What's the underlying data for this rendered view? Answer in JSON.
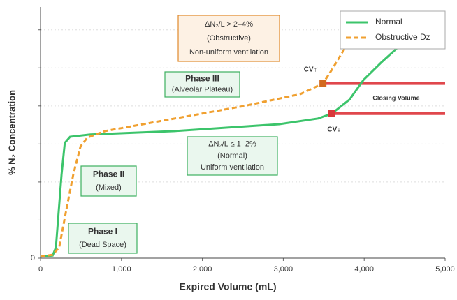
{
  "chart_data": {
    "type": "line",
    "x_label": "Expired Volume (mL)",
    "y_label": "% N₂ Concentration",
    "xlim": [
      0,
      5000
    ],
    "xticks": [
      0,
      {
        "value": 1000,
        "label": "1,000"
      },
      {
        "value": 2000,
        "label": "2,000"
      },
      {
        "value": 3000,
        "label": "3,000"
      },
      {
        "value": 4000,
        "label": "4,000"
      },
      {
        "value": 5000,
        "label": "5,000"
      }
    ],
    "ylim": [
      0,
      6.6
    ],
    "yticks": [
      0
    ],
    "y_minor_ticks": [
      1,
      2,
      3,
      4,
      5,
      6
    ],
    "grid": true,
    "legend": "upper right",
    "series": [
      {
        "name": "Normal",
        "color": "#3cc46b",
        "dash": false,
        "x": [
          0,
          150,
          190,
          260,
          300,
          365,
          620,
          1660,
          2950,
          3430,
          3600,
          3820,
          3990,
          4210,
          4510,
          4680,
          4900
        ],
        "values": [
          0.04,
          0.07,
          0.28,
          2.2,
          3.03,
          3.19,
          3.25,
          3.34,
          3.52,
          3.67,
          3.8,
          4.17,
          4.68,
          5.14,
          5.72,
          6.06,
          6.45
        ]
      },
      {
        "name": "Obstructive Dz",
        "color": "#f0a030",
        "dash": true,
        "x": [
          0,
          150,
          230,
          320,
          405,
          495,
          580,
          800,
          1660,
          2520,
          3210,
          3490,
          3600,
          3730,
          3860,
          3990
        ],
        "values": [
          0.04,
          0.09,
          0.28,
          1.28,
          2.2,
          2.94,
          3.17,
          3.34,
          3.67,
          4.0,
          4.31,
          4.59,
          4.95,
          5.41,
          5.83,
          6.24
        ]
      }
    ],
    "markers": [
      {
        "label": "CV↑",
        "x": 3490,
        "y": 4.59,
        "color": "#d2691e"
      },
      {
        "label": "CV↓",
        "x": 3600,
        "y": 3.8,
        "color": "#d9383a"
      }
    ],
    "closing_volume_label": "Closing Volume",
    "boxes": [
      {
        "lines": [
          "ΔN₂/L > 2–4%",
          "(Obstructive)",
          "Non-uniform ventilation"
        ],
        "color": "#e08a2c"
      },
      {
        "lines": [
          "Phase III",
          "(Alveolar Plateau)"
        ],
        "color": "#3cb060"
      },
      {
        "lines": [
          "ΔN₂/L ≤ 1–2%",
          "(Normal)",
          "Uniform ventilation"
        ],
        "color": "#3cb060"
      },
      {
        "lines": [
          "Phase II",
          "(Mixed)"
        ],
        "color": "#3cb060"
      },
      {
        "lines": [
          "Phase I",
          "(Dead Space)"
        ],
        "color": "#3cb060"
      }
    ]
  }
}
